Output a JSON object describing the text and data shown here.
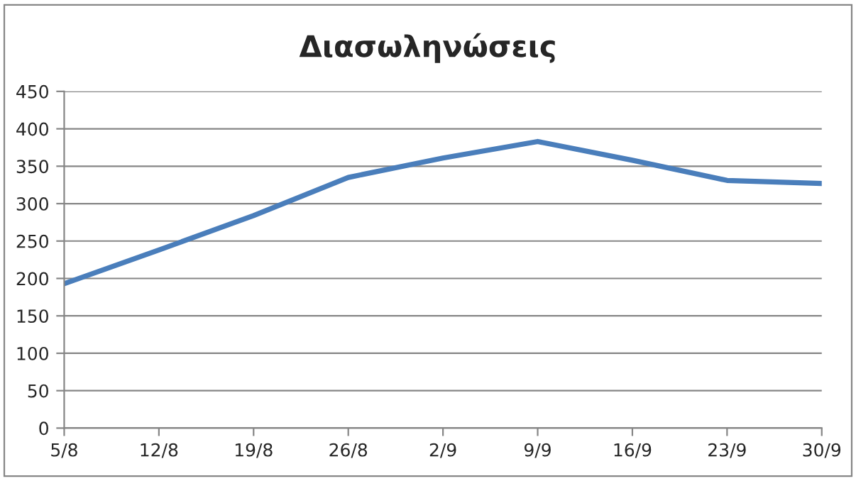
{
  "chart_data": {
    "type": "line",
    "title": "Διασωληνώσεις",
    "categories": [
      "5/8",
      "12/8",
      "19/8",
      "26/8",
      "2/9",
      "9/9",
      "16/9",
      "23/9",
      "30/9"
    ],
    "series": [
      {
        "color": "#4a7ebb",
        "values": [
          193,
          238,
          284,
          335,
          361,
          383,
          358,
          331,
          327
        ]
      }
    ],
    "ylim": [
      0,
      450
    ],
    "yticks": [
      0,
      50,
      100,
      150,
      200,
      250,
      300,
      350,
      400,
      450
    ],
    "grid": "y",
    "legend": false,
    "marker": "none",
    "line_style": "solid"
  }
}
